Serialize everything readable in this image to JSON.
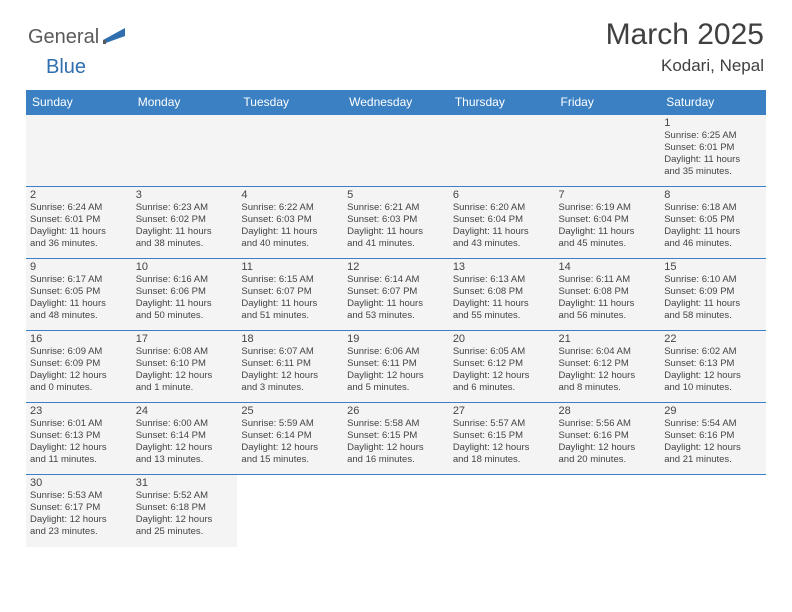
{
  "logo": {
    "part1": "General",
    "part2": "Blue"
  },
  "title": "March 2025",
  "location": "Kodari, Nepal",
  "colors": {
    "header_bg": "#3a80c2",
    "header_text": "#ffffff",
    "cell_border": "#3a80c2",
    "text": "#444444",
    "logo_gray": "#5a5a5a",
    "logo_blue": "#2f6fb0",
    "flag_fill": "#2f6fb0"
  },
  "weekdays": [
    "Sunday",
    "Monday",
    "Tuesday",
    "Wednesday",
    "Thursday",
    "Friday",
    "Saturday"
  ],
  "weeks": [
    [
      null,
      null,
      null,
      null,
      null,
      null,
      {
        "n": "1",
        "sr": "Sunrise: 6:25 AM",
        "ss": "Sunset: 6:01 PM",
        "dl1": "Daylight: 11 hours",
        "dl2": "and 35 minutes."
      }
    ],
    [
      {
        "n": "2",
        "sr": "Sunrise: 6:24 AM",
        "ss": "Sunset: 6:01 PM",
        "dl1": "Daylight: 11 hours",
        "dl2": "and 36 minutes."
      },
      {
        "n": "3",
        "sr": "Sunrise: 6:23 AM",
        "ss": "Sunset: 6:02 PM",
        "dl1": "Daylight: 11 hours",
        "dl2": "and 38 minutes."
      },
      {
        "n": "4",
        "sr": "Sunrise: 6:22 AM",
        "ss": "Sunset: 6:03 PM",
        "dl1": "Daylight: 11 hours",
        "dl2": "and 40 minutes."
      },
      {
        "n": "5",
        "sr": "Sunrise: 6:21 AM",
        "ss": "Sunset: 6:03 PM",
        "dl1": "Daylight: 11 hours",
        "dl2": "and 41 minutes."
      },
      {
        "n": "6",
        "sr": "Sunrise: 6:20 AM",
        "ss": "Sunset: 6:04 PM",
        "dl1": "Daylight: 11 hours",
        "dl2": "and 43 minutes."
      },
      {
        "n": "7",
        "sr": "Sunrise: 6:19 AM",
        "ss": "Sunset: 6:04 PM",
        "dl1": "Daylight: 11 hours",
        "dl2": "and 45 minutes."
      },
      {
        "n": "8",
        "sr": "Sunrise: 6:18 AM",
        "ss": "Sunset: 6:05 PM",
        "dl1": "Daylight: 11 hours",
        "dl2": "and 46 minutes."
      }
    ],
    [
      {
        "n": "9",
        "sr": "Sunrise: 6:17 AM",
        "ss": "Sunset: 6:05 PM",
        "dl1": "Daylight: 11 hours",
        "dl2": "and 48 minutes."
      },
      {
        "n": "10",
        "sr": "Sunrise: 6:16 AM",
        "ss": "Sunset: 6:06 PM",
        "dl1": "Daylight: 11 hours",
        "dl2": "and 50 minutes."
      },
      {
        "n": "11",
        "sr": "Sunrise: 6:15 AM",
        "ss": "Sunset: 6:07 PM",
        "dl1": "Daylight: 11 hours",
        "dl2": "and 51 minutes."
      },
      {
        "n": "12",
        "sr": "Sunrise: 6:14 AM",
        "ss": "Sunset: 6:07 PM",
        "dl1": "Daylight: 11 hours",
        "dl2": "and 53 minutes."
      },
      {
        "n": "13",
        "sr": "Sunrise: 6:13 AM",
        "ss": "Sunset: 6:08 PM",
        "dl1": "Daylight: 11 hours",
        "dl2": "and 55 minutes."
      },
      {
        "n": "14",
        "sr": "Sunrise: 6:11 AM",
        "ss": "Sunset: 6:08 PM",
        "dl1": "Daylight: 11 hours",
        "dl2": "and 56 minutes."
      },
      {
        "n": "15",
        "sr": "Sunrise: 6:10 AM",
        "ss": "Sunset: 6:09 PM",
        "dl1": "Daylight: 11 hours",
        "dl2": "and 58 minutes."
      }
    ],
    [
      {
        "n": "16",
        "sr": "Sunrise: 6:09 AM",
        "ss": "Sunset: 6:09 PM",
        "dl1": "Daylight: 12 hours",
        "dl2": "and 0 minutes."
      },
      {
        "n": "17",
        "sr": "Sunrise: 6:08 AM",
        "ss": "Sunset: 6:10 PM",
        "dl1": "Daylight: 12 hours",
        "dl2": "and 1 minute."
      },
      {
        "n": "18",
        "sr": "Sunrise: 6:07 AM",
        "ss": "Sunset: 6:11 PM",
        "dl1": "Daylight: 12 hours",
        "dl2": "and 3 minutes."
      },
      {
        "n": "19",
        "sr": "Sunrise: 6:06 AM",
        "ss": "Sunset: 6:11 PM",
        "dl1": "Daylight: 12 hours",
        "dl2": "and 5 minutes."
      },
      {
        "n": "20",
        "sr": "Sunrise: 6:05 AM",
        "ss": "Sunset: 6:12 PM",
        "dl1": "Daylight: 12 hours",
        "dl2": "and 6 minutes."
      },
      {
        "n": "21",
        "sr": "Sunrise: 6:04 AM",
        "ss": "Sunset: 6:12 PM",
        "dl1": "Daylight: 12 hours",
        "dl2": "and 8 minutes."
      },
      {
        "n": "22",
        "sr": "Sunrise: 6:02 AM",
        "ss": "Sunset: 6:13 PM",
        "dl1": "Daylight: 12 hours",
        "dl2": "and 10 minutes."
      }
    ],
    [
      {
        "n": "23",
        "sr": "Sunrise: 6:01 AM",
        "ss": "Sunset: 6:13 PM",
        "dl1": "Daylight: 12 hours",
        "dl2": "and 11 minutes."
      },
      {
        "n": "24",
        "sr": "Sunrise: 6:00 AM",
        "ss": "Sunset: 6:14 PM",
        "dl1": "Daylight: 12 hours",
        "dl2": "and 13 minutes."
      },
      {
        "n": "25",
        "sr": "Sunrise: 5:59 AM",
        "ss": "Sunset: 6:14 PM",
        "dl1": "Daylight: 12 hours",
        "dl2": "and 15 minutes."
      },
      {
        "n": "26",
        "sr": "Sunrise: 5:58 AM",
        "ss": "Sunset: 6:15 PM",
        "dl1": "Daylight: 12 hours",
        "dl2": "and 16 minutes."
      },
      {
        "n": "27",
        "sr": "Sunrise: 5:57 AM",
        "ss": "Sunset: 6:15 PM",
        "dl1": "Daylight: 12 hours",
        "dl2": "and 18 minutes."
      },
      {
        "n": "28",
        "sr": "Sunrise: 5:56 AM",
        "ss": "Sunset: 6:16 PM",
        "dl1": "Daylight: 12 hours",
        "dl2": "and 20 minutes."
      },
      {
        "n": "29",
        "sr": "Sunrise: 5:54 AM",
        "ss": "Sunset: 6:16 PM",
        "dl1": "Daylight: 12 hours",
        "dl2": "and 21 minutes."
      }
    ],
    [
      {
        "n": "30",
        "sr": "Sunrise: 5:53 AM",
        "ss": "Sunset: 6:17 PM",
        "dl1": "Daylight: 12 hours",
        "dl2": "and 23 minutes."
      },
      {
        "n": "31",
        "sr": "Sunrise: 5:52 AM",
        "ss": "Sunset: 6:18 PM",
        "dl1": "Daylight: 12 hours",
        "dl2": "and 25 minutes."
      },
      null,
      null,
      null,
      null,
      null
    ]
  ]
}
